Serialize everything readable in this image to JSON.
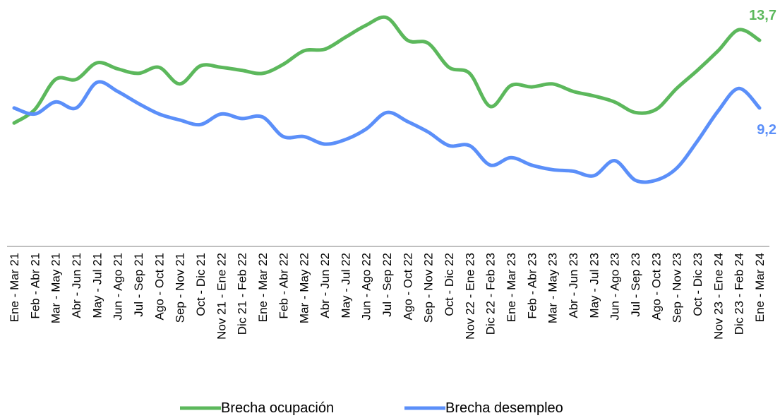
{
  "chart_data": {
    "type": "line",
    "categories": [
      "Ene - Mar 21",
      "Feb - Abr 21",
      "Mar - May 21",
      "Abr - Jun 21",
      "May - Jul 21",
      "Jun - Ago 21",
      "Jul - Sep 21",
      "Ago - Oct 21",
      "Sep - Nov 21",
      "Oct - Dic 21",
      "Nov 21 - Ene 22",
      "Dic 21 - Feb 22",
      "Ene - Mar 22",
      "Feb - Abr 22",
      "Mar - May 22",
      "Abr - Jun 22",
      "May - Jul 22",
      "Jun - Ago 22",
      "Jul - Sep 22",
      "Ago - Oct 22",
      "Sep - Nov 22",
      "Oct - Dic 22",
      "Nov 22 - Ene 23",
      "Dic 22 - Feb 23",
      "Ene - Mar 23",
      "Feb - Abr 23",
      "Mar - May 23",
      "Abr - Jun 23",
      "May - Jul 23",
      "Jun - Ago 23",
      "Jul - Sep 23",
      "Ago - Oct 23",
      "Sep - Nov 23",
      "Oct - Dic 23",
      "Nov 23 - Ene 24",
      "Dic 23 - Feb 24",
      "Ene - Mar 24"
    ],
    "series": [
      {
        "name": "Brecha ocupación",
        "color": "#5cb85c",
        "values": [
          8.2,
          9.1,
          11.1,
          11.1,
          12.2,
          11.8,
          11.5,
          11.9,
          10.8,
          12.0,
          11.9,
          11.7,
          11.5,
          12.1,
          13.0,
          13.1,
          13.9,
          14.7,
          15.2,
          13.7,
          13.5,
          11.9,
          11.5,
          9.3,
          10.7,
          10.6,
          10.8,
          10.3,
          10.0,
          9.6,
          8.9,
          9.1,
          10.5,
          11.7,
          13.0,
          14.4,
          13.7
        ],
        "value_labels": [
          null,
          null,
          null,
          null,
          null,
          null,
          null,
          null,
          null,
          null,
          null,
          null,
          null,
          null,
          null,
          null,
          null,
          null,
          null,
          null,
          null,
          null,
          null,
          null,
          null,
          null,
          null,
          null,
          null,
          null,
          null,
          null,
          null,
          null,
          null,
          null,
          "13,7"
        ]
      },
      {
        "name": "Brecha desempleo",
        "color": "#5b8ff9",
        "values": [
          9.2,
          8.8,
          9.6,
          9.2,
          10.9,
          10.3,
          9.5,
          8.8,
          8.4,
          8.1,
          8.8,
          8.5,
          8.6,
          7.3,
          7.3,
          6.8,
          7.1,
          7.8,
          8.9,
          8.3,
          7.6,
          6.7,
          6.7,
          5.4,
          5.9,
          5.4,
          5.1,
          5.0,
          4.7,
          5.7,
          4.4,
          4.4,
          5.2,
          7.0,
          9.0,
          10.5,
          9.2
        ],
        "value_labels": [
          null,
          null,
          null,
          null,
          null,
          null,
          null,
          null,
          null,
          null,
          null,
          null,
          null,
          null,
          null,
          null,
          null,
          null,
          null,
          null,
          null,
          null,
          null,
          null,
          null,
          null,
          null,
          null,
          null,
          null,
          null,
          null,
          null,
          null,
          null,
          null,
          "9,2"
        ]
      }
    ],
    "ylim": [
      0,
      16
    ],
    "grid": false,
    "legend": "bottom"
  }
}
